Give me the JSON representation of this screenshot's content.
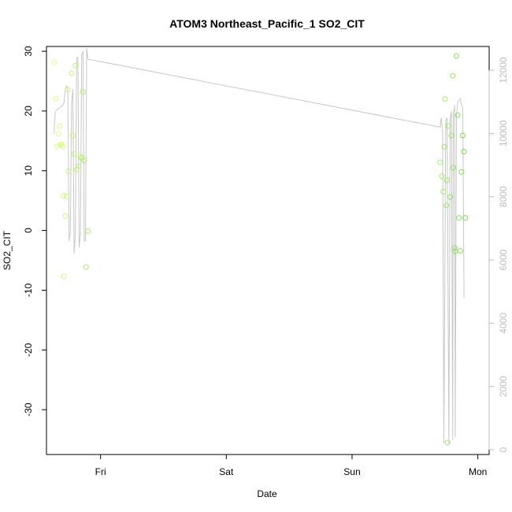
{
  "chart_data": {
    "type": "scatter",
    "title": "ATOM3 Northeast_Pacific_1 SO2_CIT",
    "xlabel": "Date",
    "ylabel": "SO2_CIT",
    "x_ticks": [
      "Fri",
      "Sat",
      "Sun",
      "Mon"
    ],
    "x_tick_values": [
      1.0,
      2.0,
      3.0,
      4.0
    ],
    "xlim": [
      0.57,
      4.09
    ],
    "ylim": [
      -37.5,
      30.8
    ],
    "y_ticks": [
      -30,
      -20,
      -10,
      0,
      10,
      20,
      30
    ],
    "y2lim": [
      -150,
      12750
    ],
    "y2_ticks": [
      0,
      2000,
      4000,
      6000,
      8000,
      10000,
      12000
    ],
    "grid": false,
    "legend": "none",
    "colors": {
      "points_start": "#dfff80",
      "points_end": "#7ed957",
      "altitude_line": "#c8c8c8",
      "right_axis": "#bdbdbd"
    },
    "series": [
      {
        "type": "scatter",
        "points": [
          [
            0.63,
            28.1
          ],
          [
            0.645,
            22.1
          ],
          [
            0.655,
            14.1
          ],
          [
            0.665,
            16.2
          ],
          [
            0.675,
            17.5
          ],
          [
            0.68,
            14.3
          ],
          [
            0.69,
            14.4
          ],
          [
            0.7,
            14.1
          ],
          [
            0.705,
            5.8
          ],
          [
            0.71,
            -7.7
          ],
          [
            0.72,
            2.4
          ],
          [
            0.73,
            5.7
          ],
          [
            0.74,
            23.6
          ],
          [
            0.745,
            9.9
          ],
          [
            0.77,
            26.3
          ],
          [
            0.78,
            15.9
          ],
          [
            0.79,
            12.8
          ],
          [
            0.8,
            27.6
          ],
          [
            0.81,
            10.2
          ],
          [
            0.825,
            10.8
          ],
          [
            0.84,
            12.3
          ],
          [
            0.85,
            12.1
          ],
          [
            0.86,
            23.2
          ],
          [
            0.87,
            11.7
          ],
          [
            0.885,
            -6.1
          ],
          [
            0.9,
            -0.1
          ],
          [
            3.7,
            11.4
          ],
          [
            3.715,
            9.1
          ],
          [
            3.725,
            6.5
          ],
          [
            3.735,
            14.0
          ],
          [
            3.74,
            22.0
          ],
          [
            3.75,
            4.2
          ],
          [
            3.755,
            8.4
          ],
          [
            3.76,
            -35.5
          ],
          [
            3.765,
            17.5
          ],
          [
            3.78,
            5.6
          ],
          [
            3.79,
            15.9
          ],
          [
            3.8,
            25.9
          ],
          [
            3.805,
            10.5
          ],
          [
            3.815,
            -2.9
          ],
          [
            3.82,
            -3.5
          ],
          [
            3.83,
            29.2
          ],
          [
            3.84,
            19.3
          ],
          [
            3.85,
            2.1
          ],
          [
            3.86,
            -3.4
          ],
          [
            3.87,
            9.8
          ],
          [
            3.88,
            15.9
          ],
          [
            3.89,
            13.2
          ],
          [
            3.9,
            2.1
          ]
        ]
      },
      {
        "type": "line",
        "axis": "right",
        "points": [
          [
            0.63,
            10000
          ],
          [
            0.64,
            10700
          ],
          [
            0.7,
            10900
          ],
          [
            0.71,
            11000
          ],
          [
            0.72,
            11400
          ],
          [
            0.73,
            11500
          ],
          [
            0.74,
            11400
          ],
          [
            0.75,
            6600
          ],
          [
            0.76,
            6900
          ],
          [
            0.77,
            11000
          ],
          [
            0.78,
            11400
          ],
          [
            0.79,
            6200
          ],
          [
            0.8,
            6800
          ],
          [
            0.81,
            12400
          ],
          [
            0.82,
            12400
          ],
          [
            0.83,
            6400
          ],
          [
            0.84,
            6800
          ],
          [
            0.85,
            12500
          ],
          [
            0.86,
            12600
          ],
          [
            0.87,
            6600
          ],
          [
            0.88,
            6600
          ],
          [
            0.89,
            12700
          ],
          [
            0.9,
            12350
          ],
          [
            3.7,
            10200
          ],
          [
            3.71,
            10500
          ],
          [
            3.72,
            10000
          ],
          [
            3.73,
            200
          ],
          [
            3.745,
            10400
          ],
          [
            3.755,
            10500
          ],
          [
            3.77,
            200
          ],
          [
            3.78,
            10500
          ],
          [
            3.79,
            10700
          ],
          [
            3.8,
            300
          ],
          [
            3.805,
            10600
          ],
          [
            3.815,
            10900
          ],
          [
            3.82,
            400
          ],
          [
            3.83,
            10600
          ],
          [
            3.84,
            11000
          ],
          [
            3.86,
            11100
          ],
          [
            3.87,
            10900
          ],
          [
            3.88,
            10800
          ],
          [
            3.89,
            4800
          ]
        ]
      }
    ]
  }
}
